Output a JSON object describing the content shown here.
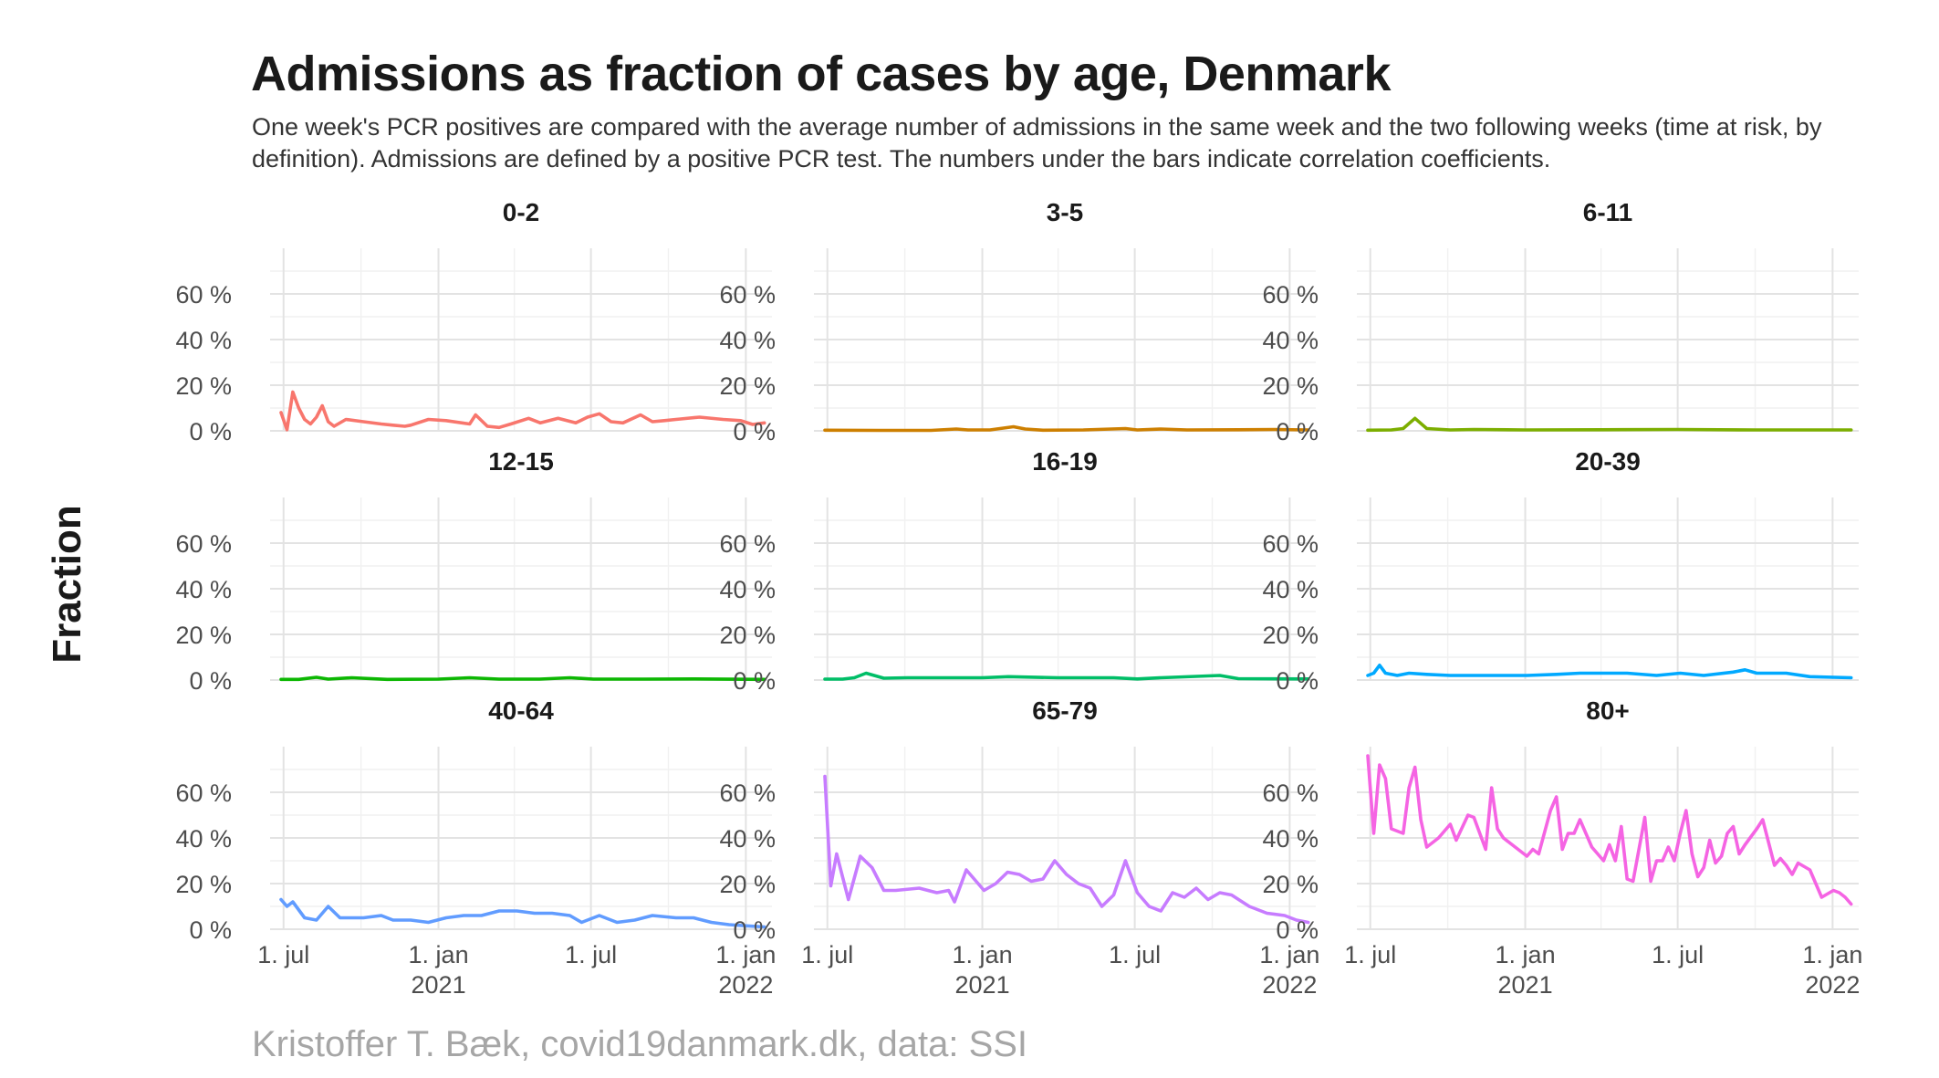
{
  "title": "Admissions as fraction of cases by age, Denmark",
  "subtitle": "One week's PCR positives are compared with the average number of admissions in the same week and the two following weeks (time at risk, by definition). Admissions are defined by a positive PCR test. The numbers under the bars indicate correlation coefficients.",
  "caption": "Kristoffer T. Bæk, covid19danmark.dk, data: SSI",
  "chart_data": {
    "type": "line",
    "facet_layout": "3x3",
    "ylabel": "Fraction",
    "xlim": [
      "2020-06-15",
      "2022-02-01"
    ],
    "ylim": [
      0,
      0.8
    ],
    "y_ticks": [
      {
        "value": 0,
        "label": "0 %"
      },
      {
        "value": 0.2,
        "label": "20 %"
      },
      {
        "value": 0.4,
        "label": "40 %"
      },
      {
        "value": 0.6,
        "label": "60 %"
      }
    ],
    "x_ticks": [
      {
        "date": "2020-07-01",
        "label": "1. jul",
        "sublabel": ""
      },
      {
        "date": "2021-01-01",
        "label": "1. jan",
        "sublabel": "2021"
      },
      {
        "date": "2021-07-01",
        "label": "1. jul",
        "sublabel": ""
      },
      {
        "date": "2022-01-01",
        "label": "1. jan",
        "sublabel": "2022"
      }
    ],
    "x_minor_ticks": [
      "2020-10-01",
      "2021-04-01",
      "2021-10-01"
    ],
    "series": [
      {
        "name": "0-2",
        "color": "#F8766D",
        "x": [
          "2020-06-28",
          "2020-07-05",
          "2020-07-12",
          "2020-07-19",
          "2020-07-26",
          "2020-08-02",
          "2020-08-09",
          "2020-08-16",
          "2020-08-23",
          "2020-08-30",
          "2020-09-13",
          "2020-10-04",
          "2020-10-25",
          "2020-11-08",
          "2020-11-22",
          "2020-11-29",
          "2020-12-20",
          "2021-01-10",
          "2021-02-07",
          "2021-02-14",
          "2021-02-28",
          "2021-03-14",
          "2021-03-28",
          "2021-04-18",
          "2021-05-02",
          "2021-05-23",
          "2021-06-13",
          "2021-06-27",
          "2021-07-11",
          "2021-07-25",
          "2021-08-08",
          "2021-08-29",
          "2021-09-12",
          "2021-09-26",
          "2021-10-10",
          "2021-11-07",
          "2021-12-05",
          "2021-12-26",
          "2022-01-09",
          "2022-01-23"
        ],
        "y": [
          0.08,
          0.005,
          0.17,
          0.1,
          0.05,
          0.03,
          0.06,
          0.11,
          0.04,
          0.02,
          0.05,
          0.04,
          0.03,
          0.025,
          0.02,
          0.025,
          0.05,
          0.045,
          0.03,
          0.07,
          0.02,
          0.015,
          0.03,
          0.055,
          0.035,
          0.055,
          0.035,
          0.06,
          0.075,
          0.04,
          0.035,
          0.07,
          0.04,
          0.045,
          0.05,
          0.06,
          0.05,
          0.045,
          0.028,
          0.035
        ]
      },
      {
        "name": "3-5",
        "color": "#CD7F00",
        "x": [
          "2020-06-28",
          "2020-09-01",
          "2020-11-01",
          "2020-12-01",
          "2020-12-15",
          "2021-01-10",
          "2021-02-07",
          "2021-02-21",
          "2021-03-14",
          "2021-05-01",
          "2021-06-20",
          "2021-07-04",
          "2021-08-01",
          "2021-09-01",
          "2021-11-01",
          "2021-12-15",
          "2022-01-23"
        ],
        "y": [
          0.003,
          0.002,
          0.002,
          0.008,
          0.004,
          0.004,
          0.018,
          0.008,
          0.003,
          0.004,
          0.01,
          0.004,
          0.008,
          0.004,
          0.005,
          0.006,
          0.004
        ]
      },
      {
        "name": "6-11",
        "color": "#7CAE00",
        "x": [
          "2020-06-28",
          "2020-07-26",
          "2020-08-09",
          "2020-08-23",
          "2020-09-06",
          "2020-10-04",
          "2020-11-01",
          "2021-01-01",
          "2021-04-01",
          "2021-07-01",
          "2021-10-01",
          "2022-01-23"
        ],
        "y": [
          0.003,
          0.004,
          0.01,
          0.055,
          0.01,
          0.004,
          0.006,
          0.004,
          0.005,
          0.006,
          0.004,
          0.004
        ]
      },
      {
        "name": "12-15",
        "color": "#0CB702",
        "x": [
          "2020-06-28",
          "2020-07-19",
          "2020-08-09",
          "2020-08-23",
          "2020-09-20",
          "2020-11-01",
          "2021-01-01",
          "2021-02-07",
          "2021-03-14",
          "2021-05-01",
          "2021-06-06",
          "2021-07-04",
          "2021-09-01",
          "2021-11-01",
          "2022-01-23"
        ],
        "y": [
          0.003,
          0.003,
          0.012,
          0.004,
          0.01,
          0.003,
          0.004,
          0.01,
          0.004,
          0.004,
          0.01,
          0.004,
          0.004,
          0.005,
          0.003
        ]
      },
      {
        "name": "16-19",
        "color": "#00BE67",
        "x": [
          "2020-06-28",
          "2020-07-19",
          "2020-08-02",
          "2020-08-16",
          "2020-09-06",
          "2020-10-04",
          "2020-11-01",
          "2021-01-01",
          "2021-02-01",
          "2021-04-01",
          "2021-06-06",
          "2021-07-04",
          "2021-08-01",
          "2021-10-10",
          "2021-11-01",
          "2022-01-23"
        ],
        "y": [
          0.004,
          0.004,
          0.01,
          0.03,
          0.008,
          0.01,
          0.01,
          0.01,
          0.015,
          0.01,
          0.01,
          0.005,
          0.01,
          0.02,
          0.006,
          0.005
        ]
      },
      {
        "name": "20-39",
        "color": "#00A9FF",
        "x": [
          "2020-06-28",
          "2020-07-05",
          "2020-07-12",
          "2020-07-19",
          "2020-08-02",
          "2020-08-16",
          "2020-09-06",
          "2020-10-04",
          "2020-11-01",
          "2020-12-06",
          "2021-01-03",
          "2021-02-07",
          "2021-03-07",
          "2021-04-04",
          "2021-05-02",
          "2021-06-06",
          "2021-07-04",
          "2021-08-01",
          "2021-09-05",
          "2021-09-19",
          "2021-10-03",
          "2021-11-07",
          "2021-12-05",
          "2022-01-23"
        ],
        "y": [
          0.02,
          0.03,
          0.065,
          0.03,
          0.02,
          0.03,
          0.025,
          0.02,
          0.02,
          0.02,
          0.02,
          0.025,
          0.03,
          0.03,
          0.03,
          0.02,
          0.03,
          0.02,
          0.035,
          0.045,
          0.03,
          0.03,
          0.015,
          0.01
        ]
      },
      {
        "name": "40-64",
        "color": "#619CFF",
        "x": [
          "2020-06-28",
          "2020-07-05",
          "2020-07-12",
          "2020-07-26",
          "2020-08-09",
          "2020-08-23",
          "2020-09-06",
          "2020-10-04",
          "2020-10-25",
          "2020-11-08",
          "2020-11-29",
          "2020-12-20",
          "2021-01-10",
          "2021-01-31",
          "2021-02-21",
          "2021-03-14",
          "2021-04-04",
          "2021-04-25",
          "2021-05-16",
          "2021-06-06",
          "2021-06-20",
          "2021-07-11",
          "2021-08-01",
          "2021-08-22",
          "2021-09-12",
          "2021-10-10",
          "2021-10-31",
          "2021-11-21",
          "2021-12-12",
          "2022-01-02",
          "2022-01-23"
        ],
        "y": [
          0.13,
          0.1,
          0.12,
          0.05,
          0.04,
          0.1,
          0.05,
          0.05,
          0.06,
          0.04,
          0.04,
          0.03,
          0.05,
          0.06,
          0.06,
          0.08,
          0.08,
          0.07,
          0.07,
          0.06,
          0.03,
          0.06,
          0.03,
          0.04,
          0.06,
          0.05,
          0.05,
          0.03,
          0.02,
          0.015,
          0.01
        ]
      },
      {
        "name": "65-79",
        "color": "#C77CFF",
        "x": [
          "2020-06-28",
          "2020-07-05",
          "2020-07-12",
          "2020-07-26",
          "2020-08-09",
          "2020-08-23",
          "2020-09-06",
          "2020-09-20",
          "2020-10-18",
          "2020-11-08",
          "2020-11-22",
          "2020-11-29",
          "2020-12-13",
          "2021-01-03",
          "2021-01-17",
          "2021-01-31",
          "2021-02-14",
          "2021-02-28",
          "2021-03-14",
          "2021-03-28",
          "2021-04-11",
          "2021-04-25",
          "2021-05-09",
          "2021-05-23",
          "2021-06-06",
          "2021-06-20",
          "2021-07-04",
          "2021-07-18",
          "2021-08-01",
          "2021-08-15",
          "2021-08-29",
          "2021-09-12",
          "2021-09-26",
          "2021-10-10",
          "2021-10-24",
          "2021-11-14",
          "2021-12-05",
          "2021-12-26",
          "2022-01-09",
          "2022-01-23"
        ],
        "y": [
          0.67,
          0.19,
          0.33,
          0.13,
          0.32,
          0.27,
          0.17,
          0.17,
          0.18,
          0.16,
          0.17,
          0.12,
          0.26,
          0.17,
          0.2,
          0.25,
          0.24,
          0.21,
          0.22,
          0.3,
          0.24,
          0.2,
          0.18,
          0.1,
          0.15,
          0.3,
          0.16,
          0.1,
          0.08,
          0.16,
          0.14,
          0.18,
          0.13,
          0.16,
          0.15,
          0.1,
          0.07,
          0.06,
          0.04,
          0.03
        ]
      },
      {
        "name": "80+",
        "color": "#F564E3",
        "x": [
          "2020-06-28",
          "2020-07-05",
          "2020-07-12",
          "2020-07-19",
          "2020-07-26",
          "2020-08-09",
          "2020-08-16",
          "2020-08-23",
          "2020-08-30",
          "2020-09-06",
          "2020-09-13",
          "2020-09-20",
          "2020-10-04",
          "2020-10-11",
          "2020-10-25",
          "2020-11-01",
          "2020-11-15",
          "2020-11-22",
          "2020-11-29",
          "2020-12-06",
          "2020-12-20",
          "2021-01-03",
          "2021-01-10",
          "2021-01-17",
          "2021-01-31",
          "2021-02-07",
          "2021-02-14",
          "2021-02-21",
          "2021-02-28",
          "2021-03-07",
          "2021-03-21",
          "2021-04-04",
          "2021-04-11",
          "2021-04-18",
          "2021-04-25",
          "2021-05-02",
          "2021-05-09",
          "2021-05-23",
          "2021-05-30",
          "2021-06-06",
          "2021-06-13",
          "2021-06-20",
          "2021-06-27",
          "2021-07-04",
          "2021-07-11",
          "2021-07-18",
          "2021-07-25",
          "2021-08-01",
          "2021-08-08",
          "2021-08-15",
          "2021-08-22",
          "2021-08-29",
          "2021-09-05",
          "2021-09-12",
          "2021-09-19",
          "2021-10-03",
          "2021-10-10",
          "2021-10-24",
          "2021-10-31",
          "2021-11-07",
          "2021-11-14",
          "2021-11-21",
          "2021-12-05",
          "2021-12-19",
          "2022-01-02",
          "2022-01-09",
          "2022-01-16",
          "2022-01-23"
        ],
        "y": [
          0.76,
          0.42,
          0.72,
          0.66,
          0.44,
          0.42,
          0.62,
          0.71,
          0.48,
          0.36,
          0.38,
          0.4,
          0.46,
          0.39,
          0.5,
          0.49,
          0.35,
          0.62,
          0.44,
          0.4,
          0.36,
          0.32,
          0.35,
          0.33,
          0.52,
          0.58,
          0.35,
          0.42,
          0.42,
          0.48,
          0.36,
          0.3,
          0.37,
          0.3,
          0.45,
          0.22,
          0.21,
          0.49,
          0.21,
          0.3,
          0.3,
          0.36,
          0.3,
          0.42,
          0.52,
          0.33,
          0.23,
          0.27,
          0.39,
          0.29,
          0.32,
          0.42,
          0.45,
          0.33,
          0.37,
          0.44,
          0.48,
          0.28,
          0.31,
          0.28,
          0.24,
          0.29,
          0.26,
          0.14,
          0.17,
          0.16,
          0.14,
          0.11
        ]
      }
    ]
  }
}
